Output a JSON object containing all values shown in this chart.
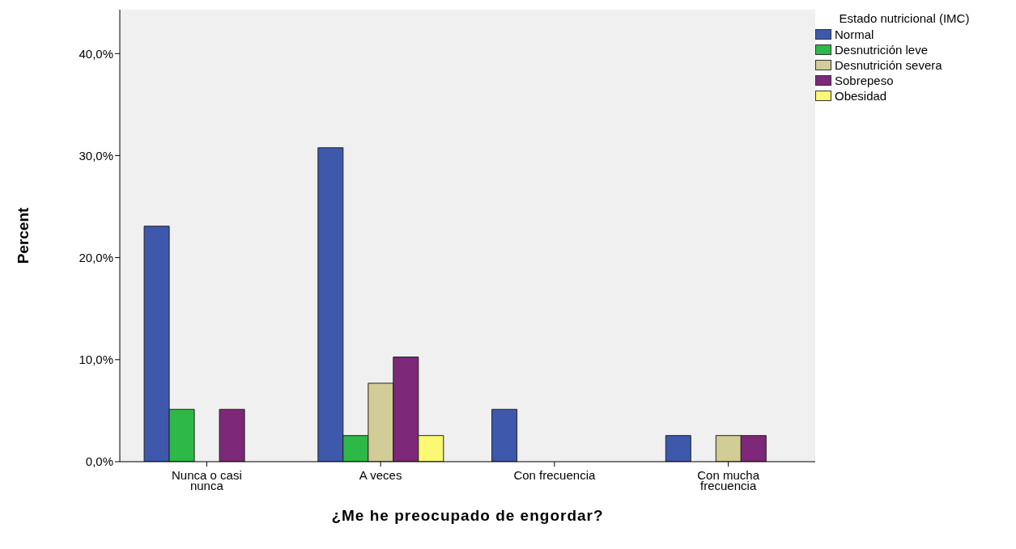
{
  "chart_data": {
    "type": "bar",
    "xlabel": "¿Me he preocupado de engordar?",
    "ylabel": "Percent",
    "legend_title": "Estado nutricional (IMC)",
    "categories": [
      "Nunca o casi nunca",
      "A veces",
      "Con frecuencia",
      "Con mucha frecuencia"
    ],
    "series": [
      {
        "name": "Normal",
        "color": "#3e58ac",
        "values": [
          23.08,
          30.77,
          5.13,
          2.56
        ]
      },
      {
        "name": "Desnutrición leve",
        "color": "#2eb848",
        "values": [
          5.13,
          2.56,
          0,
          0
        ]
      },
      {
        "name": "Desnutrición severa",
        "color": "#d2cc96",
        "values": [
          0,
          7.69,
          0,
          2.56
        ]
      },
      {
        "name": "Sobrepeso",
        "color": "#7d2878",
        "values": [
          5.13,
          10.26,
          0,
          2.56
        ]
      },
      {
        "name": "Obesidad",
        "color": "#fbf873",
        "values": [
          0,
          2.56,
          0,
          0
        ]
      }
    ],
    "ylim": [
      0,
      44.3
    ],
    "yticks": [
      {
        "value": 0,
        "label": "0,0%"
      },
      {
        "value": 10,
        "label": "10,0%"
      },
      {
        "value": 20,
        "label": "20,0%"
      },
      {
        "value": 30,
        "label": "30,0%"
      },
      {
        "value": 40,
        "label": "40,0%"
      }
    ],
    "grid": false,
    "legend": "top right"
  }
}
